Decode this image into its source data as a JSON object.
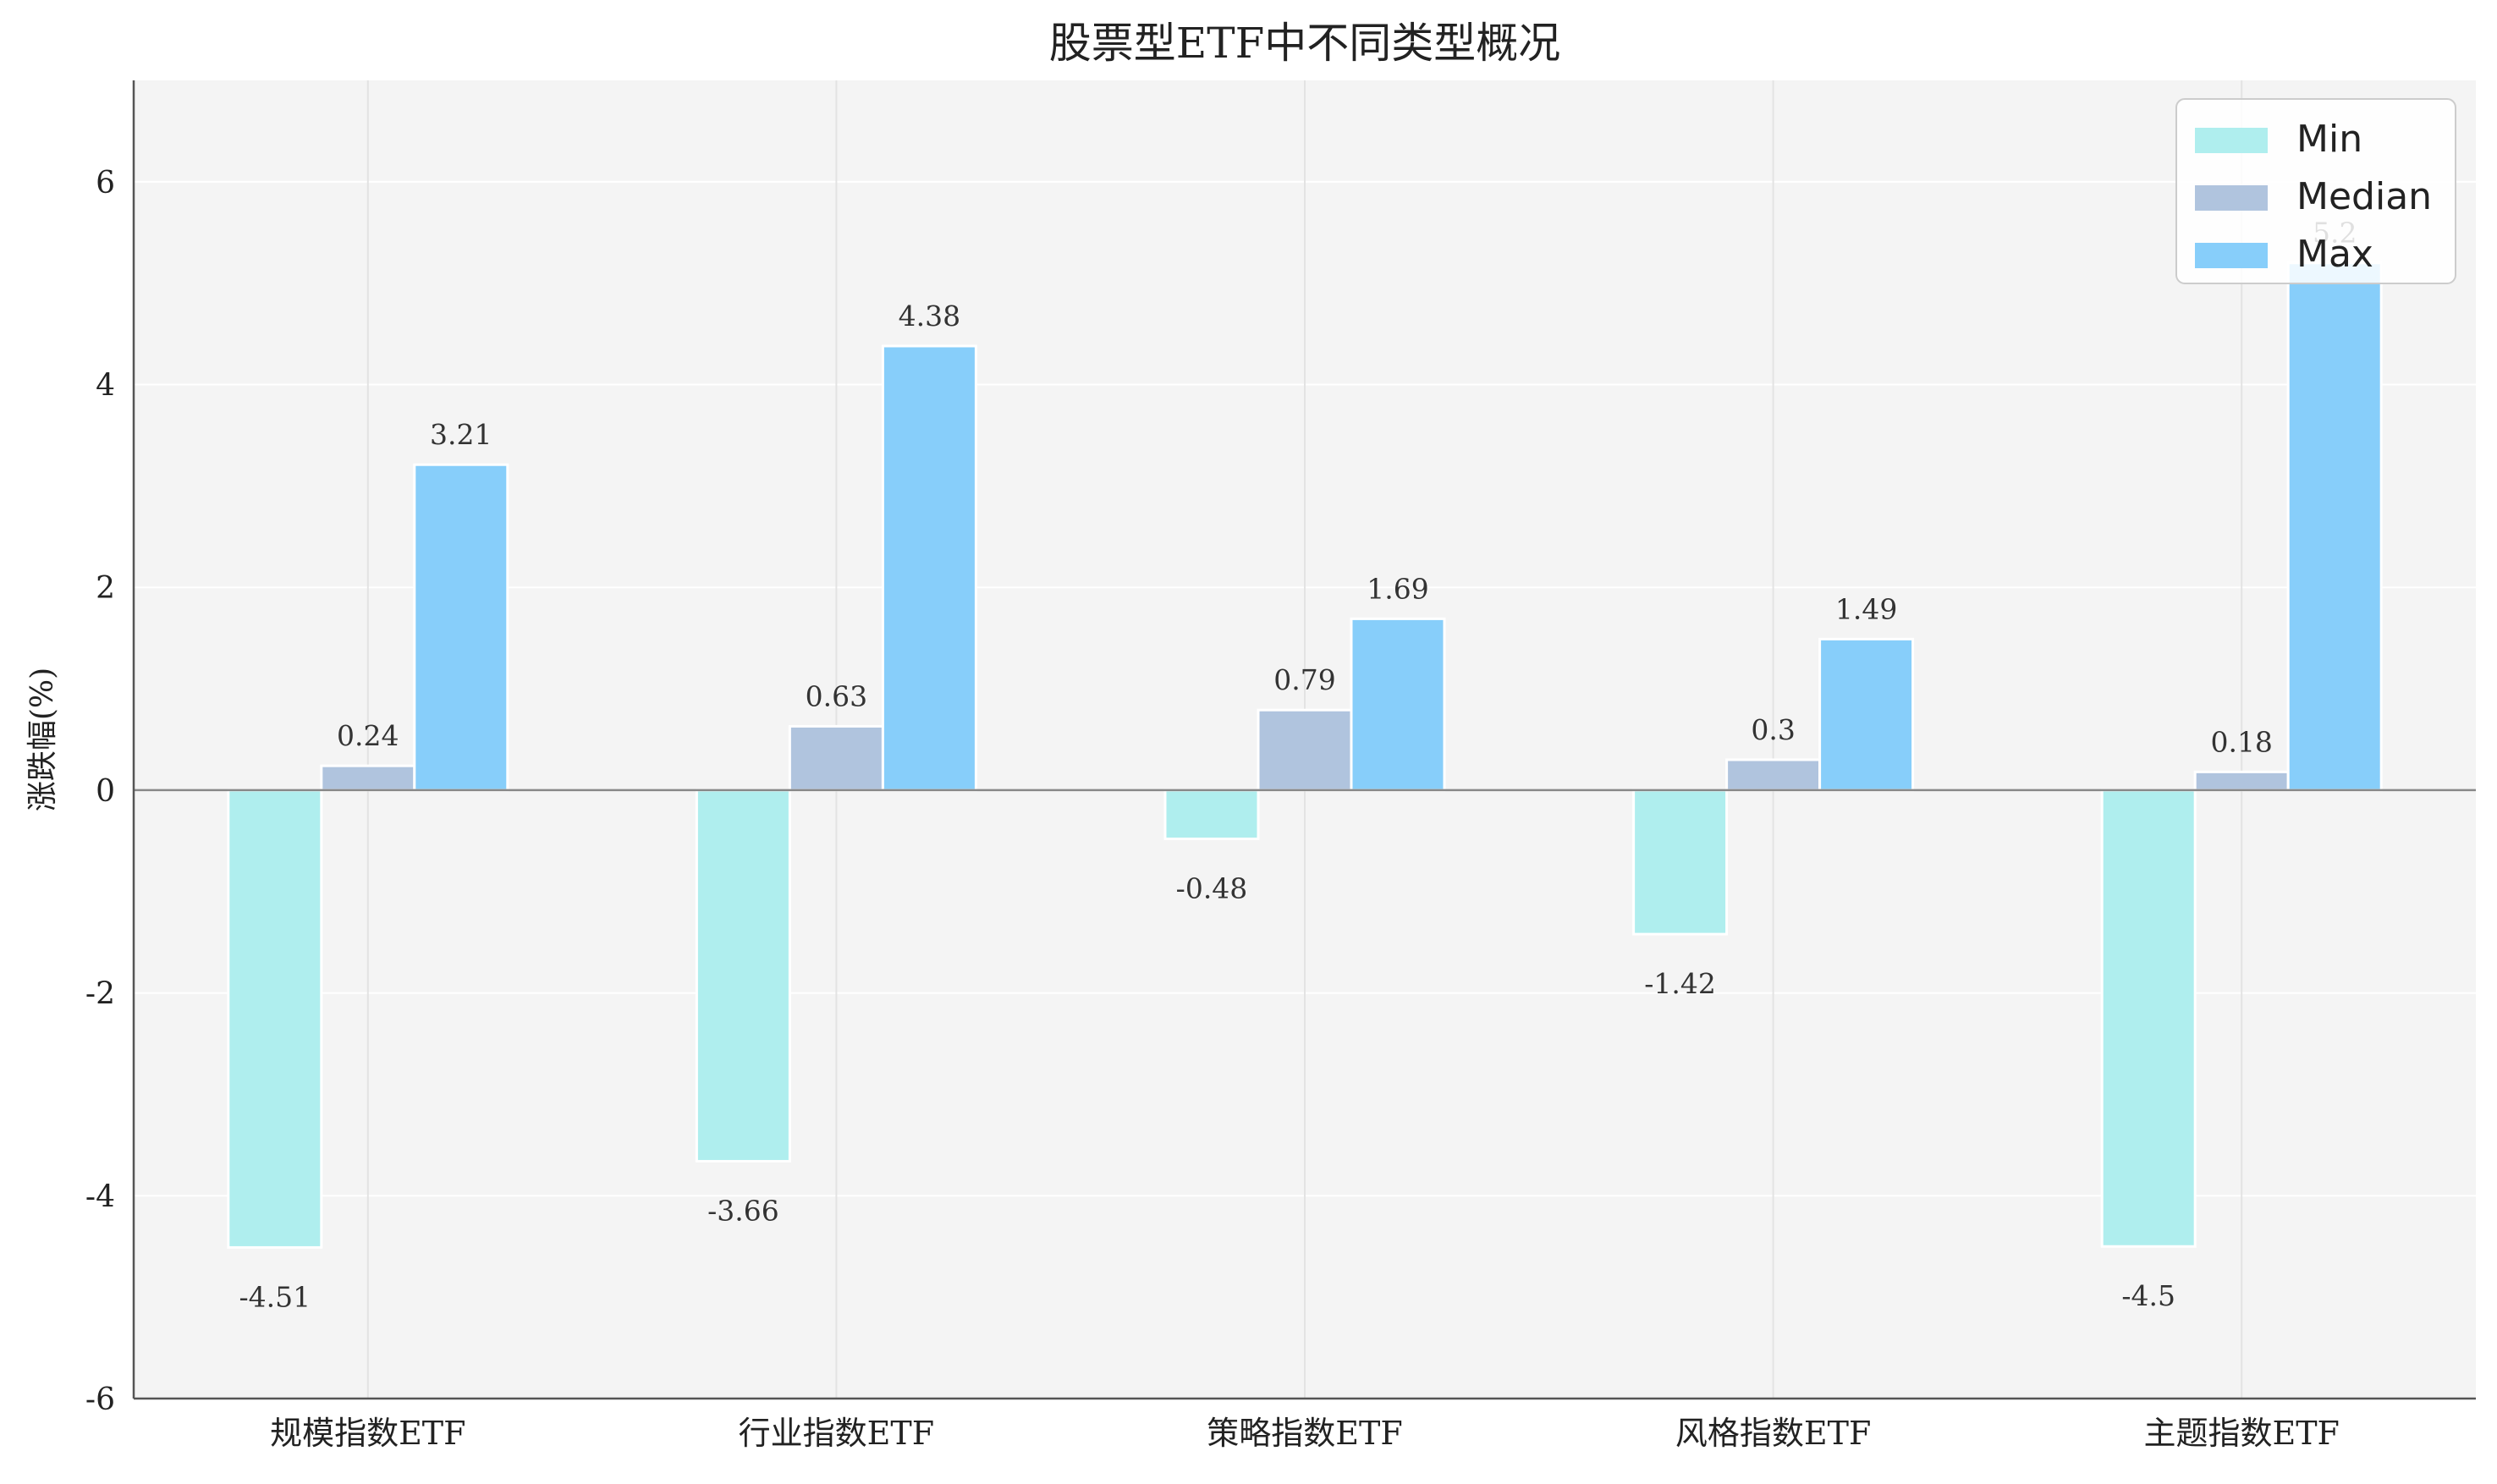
{
  "chart_data": {
    "type": "bar",
    "title": "股票型ETF中不同类型概况",
    "xlabel": "",
    "ylabel": "涨跌幅(%)",
    "ylim": [
      -6,
      7
    ],
    "yticks": [
      -6,
      -4,
      -2,
      0,
      2,
      4,
      6
    ],
    "grid": true,
    "legend_position": "top-right",
    "categories": [
      "规模指数ETF",
      "行业指数ETF",
      "策略指数ETF",
      "风格指数ETF",
      "主题指数ETF"
    ],
    "series": [
      {
        "name": "Min",
        "color": "#AFEEEE",
        "values": [
          -4.51,
          -3.66,
          -0.48,
          -1.42,
          -4.5
        ]
      },
      {
        "name": "Median",
        "color": "#B0C4DE",
        "values": [
          0.24,
          0.63,
          0.79,
          0.3,
          0.18
        ]
      },
      {
        "name": "Max",
        "color": "#87CEFA",
        "values": [
          3.21,
          4.38,
          1.69,
          1.49,
          5.2
        ]
      }
    ],
    "data_labels": [
      [
        "-4.51",
        "-3.66",
        "-0.48",
        "-1.42",
        "-4.5"
      ],
      [
        "0.24",
        "0.63",
        "0.79",
        "0.3",
        "0.18"
      ],
      [
        "3.21",
        "4.38",
        "1.69",
        "1.49",
        "5.2"
      ]
    ],
    "colors": {
      "plot_background": "#F4F4F4",
      "grid": "#FFFFFF",
      "baseline": "#888888"
    }
  }
}
